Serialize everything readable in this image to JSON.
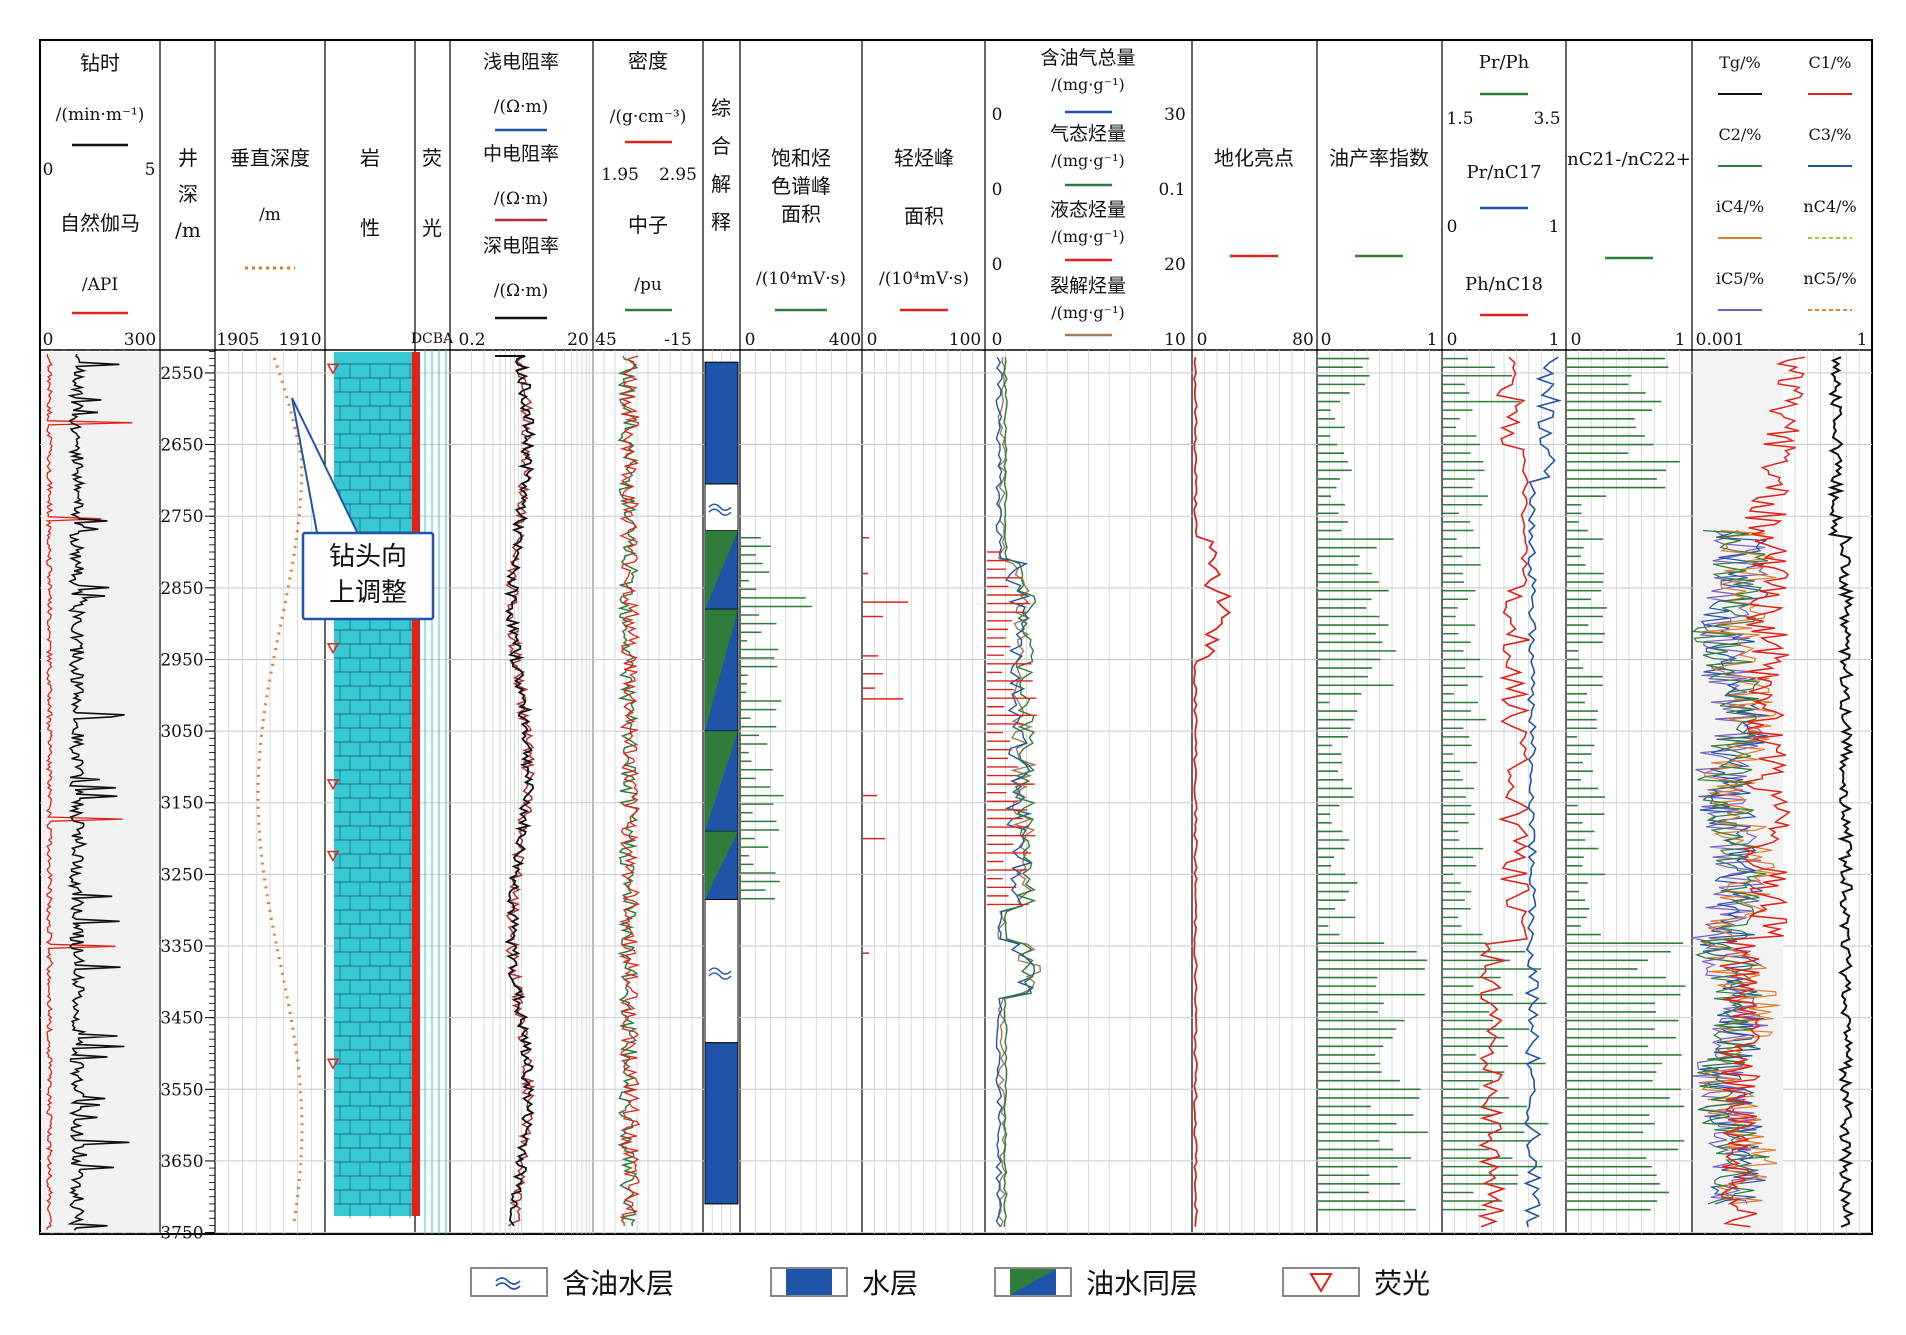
{
  "columns": {
    "drill": {
      "title": "钻时",
      "unit": "/(min·m⁻¹)",
      "min": "0",
      "max": "5",
      "title2": "自然伽马",
      "unit2": "/API",
      "min2": "0",
      "max2": "300"
    },
    "depth": {
      "label": [
        "井",
        "深",
        "/m"
      ]
    },
    "tvd": {
      "title": "垂直深度",
      "unit": "/m",
      "min": "1905",
      "max": "1910"
    },
    "lith": {
      "label": [
        "岩",
        "性"
      ]
    },
    "fluor": {
      "label": [
        "荧",
        "光"
      ],
      "scale": "DCBA"
    },
    "resist": {
      "shallow": "浅电阻率",
      "medium": "中电阻率",
      "deep": "深电阻率",
      "unit": "/(Ω·m)",
      "min": "0.2",
      "max": "20"
    },
    "density": {
      "title": "密度",
      "unit": "/(g·cm⁻³)",
      "min": "1.95",
      "max": "2.95",
      "title2": "中子",
      "unit2": "/pu",
      "min2": "45",
      "max2": "-15"
    },
    "interp": {
      "label": [
        "综",
        "合",
        "解",
        "释"
      ]
    },
    "sat": {
      "title": [
        "饱和烃",
        "色谱峰",
        "面积"
      ],
      "unit": "/(10⁴mV·s)",
      "min": "0",
      "max": "400"
    },
    "light": {
      "title": [
        "轻烃峰",
        "面积"
      ],
      "unit": "/(10⁴mV·s)",
      "min": "0",
      "max": "100"
    },
    "hc": {
      "total": "含油气总量",
      "gas": "气态烃量",
      "liquid": "液态烃量",
      "crack": "裂解烃量",
      "unit": "/(mg·g⁻¹)",
      "r1": [
        "0",
        "30"
      ],
      "r2": [
        "0",
        "0.1"
      ],
      "r3": [
        "0",
        "20"
      ],
      "r4": [
        "0",
        "10"
      ]
    },
    "geo": {
      "title": "地化亮点",
      "min": "0",
      "max": "80"
    },
    "prod": {
      "title": "油产率指数",
      "min": "0",
      "max": "1"
    },
    "prph": {
      "t1": "Pr/Ph",
      "r1": [
        "1.5",
        "3.5"
      ],
      "t2": "Pr/nC17",
      "r2": [
        "0",
        "1"
      ],
      "t3": "Ph/nC18",
      "r3": [
        "0",
        "1"
      ]
    },
    "nc": {
      "title": "nC21-/nC22+",
      "min": "0",
      "max": "1"
    },
    "gas": {
      "labels": [
        "Tg/%",
        "C1/%",
        "C2/%",
        "C3/%",
        "iC4/%",
        "nC4/%",
        "iC5/%",
        "nC5/%"
      ],
      "min": "0.001",
      "max": "1"
    }
  },
  "depth_ticks": [
    "2550",
    "2650",
    "2750",
    "2850",
    "2950",
    "3050",
    "3150",
    "3250",
    "3350",
    "3450",
    "3550",
    "3650",
    "3750"
  ],
  "callout": [
    "钻头向",
    "上调整"
  ],
  "legend": [
    {
      "label": "含油水层",
      "kind": "oil-water-bearing"
    },
    {
      "label": "水层",
      "kind": "water"
    },
    {
      "label": "油水同层",
      "kind": "oil-water"
    },
    {
      "label": "荧光",
      "kind": "fluorescence"
    }
  ],
  "interpretation": [
    {
      "kind": "water",
      "top": 2535,
      "bottom": 2705
    },
    {
      "kind": "oil-water-bearing",
      "top": 2705,
      "bottom": 2770
    },
    {
      "kind": "oil-water",
      "top": 2770,
      "bottom": 2880
    },
    {
      "kind": "oil-water",
      "top": 2880,
      "bottom": 3050
    },
    {
      "kind": "oil-water",
      "top": 3050,
      "bottom": 3190
    },
    {
      "kind": "oil-water",
      "top": 3190,
      "bottom": 3285
    },
    {
      "kind": "oil-water-bearing",
      "top": 3285,
      "bottom": 3485
    },
    {
      "kind": "water",
      "top": 3485,
      "bottom": 3710
    }
  ],
  "fluorescence_depths": [
    2545,
    2935,
    3125,
    3225,
    3515
  ],
  "colors": {
    "blue": "#1f55a8",
    "green": "#2e7d3a",
    "red": "#e0221a",
    "cyan": "#36c9d3",
    "orange": "#e07b2a",
    "brown": "#a07a5a",
    "purple": "#7b5cc8"
  }
}
